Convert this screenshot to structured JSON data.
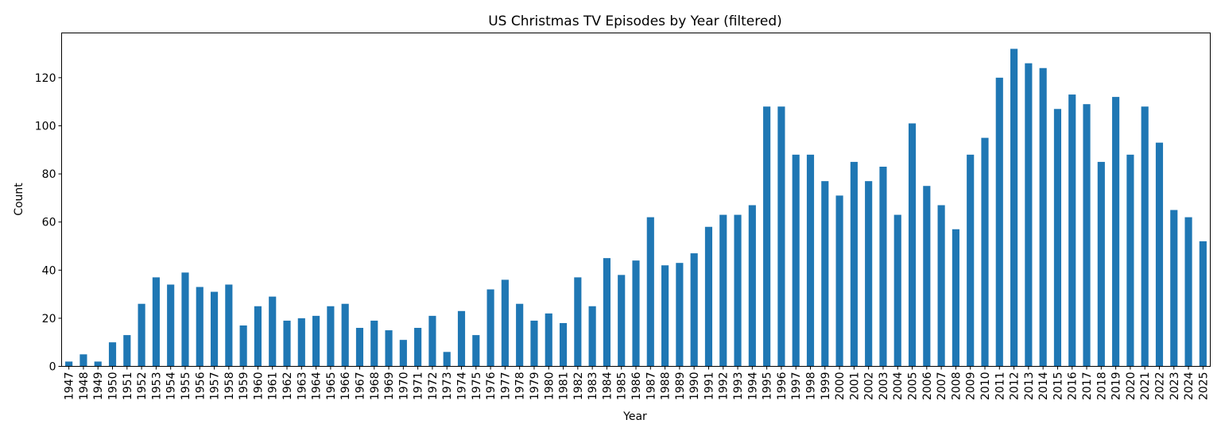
{
  "chart_data": {
    "type": "bar",
    "title": "US Christmas TV Episodes by Year (filtered)",
    "xlabel": "Year",
    "ylabel": "Count",
    "ylim": [
      0,
      138.6
    ],
    "yticks": [
      0,
      20,
      40,
      60,
      80,
      100,
      120
    ],
    "grid": false,
    "bar_color": "#1f77b4",
    "categories": [
      "1947",
      "1948",
      "1949",
      "1950",
      "1951",
      "1952",
      "1953",
      "1954",
      "1955",
      "1956",
      "1957",
      "1958",
      "1959",
      "1960",
      "1961",
      "1962",
      "1963",
      "1964",
      "1965",
      "1966",
      "1967",
      "1968",
      "1969",
      "1970",
      "1971",
      "1972",
      "1973",
      "1974",
      "1975",
      "1976",
      "1977",
      "1978",
      "1979",
      "1980",
      "1981",
      "1982",
      "1983",
      "1984",
      "1985",
      "1986",
      "1987",
      "1988",
      "1989",
      "1990",
      "1991",
      "1992",
      "1993",
      "1994",
      "1995",
      "1996",
      "1997",
      "1998",
      "1999",
      "2000",
      "2001",
      "2002",
      "2003",
      "2004",
      "2005",
      "2006",
      "2007",
      "2008",
      "2009",
      "2010",
      "2011",
      "2012",
      "2013",
      "2014",
      "2015",
      "2016",
      "2017",
      "2018",
      "2019",
      "2020",
      "2021",
      "2022",
      "2023",
      "2024",
      "2025"
    ],
    "values": [
      2,
      5,
      2,
      10,
      13,
      26,
      37,
      34,
      39,
      33,
      31,
      34,
      17,
      25,
      29,
      19,
      20,
      21,
      25,
      26,
      16,
      19,
      15,
      11,
      16,
      21,
      6,
      23,
      13,
      32,
      36,
      26,
      19,
      22,
      18,
      37,
      25,
      45,
      38,
      44,
      62,
      42,
      43,
      47,
      58,
      63,
      63,
      67,
      108,
      108,
      88,
      88,
      77,
      71,
      85,
      77,
      83,
      63,
      101,
      75,
      67,
      57,
      88,
      95,
      120,
      132,
      126,
      124,
      107,
      113,
      109,
      85,
      112,
      88,
      108,
      93,
      65,
      62,
      52
    ]
  }
}
